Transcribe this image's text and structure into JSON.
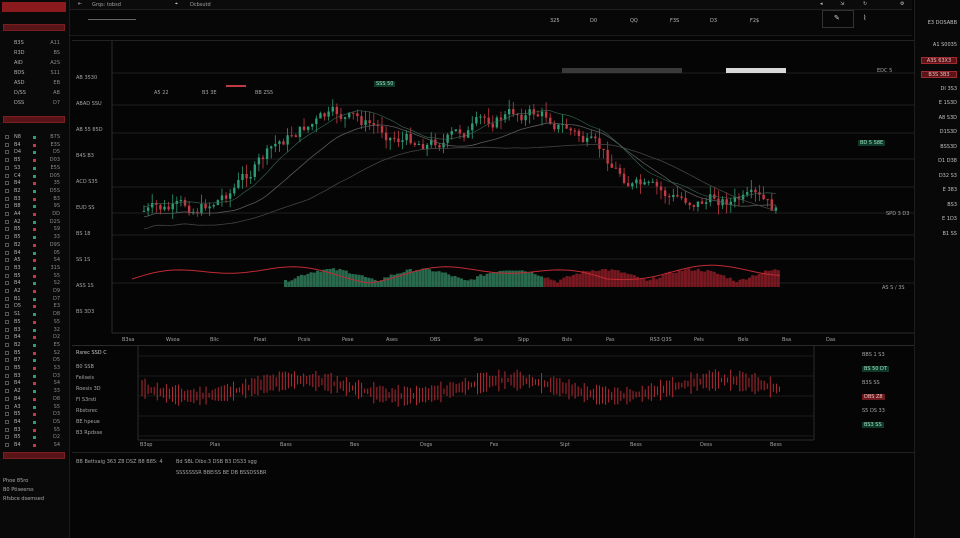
{
  "app": {
    "logo_text": "",
    "tab_label": "Grqs: tobsd",
    "tab2_label": "Dcbsutd"
  },
  "colors": {
    "up": "#2e9b74",
    "down": "#c23a44",
    "accent": "#8b1a1f",
    "grid": "#1e1e1e"
  },
  "header_prices": [
    "325",
    "D0",
    "QQ",
    "F3S",
    "D3",
    "F2$"
  ],
  "leftpanel": {
    "header_rows": [
      {
        "sym": "B3S",
        "val": "A11"
      },
      {
        "sym": "R3D",
        "val": "BS"
      },
      {
        "sym": "AID",
        "val": "A2S"
      },
      {
        "sym": "BDS",
        "val": "S11"
      },
      {
        "sym": "ASD",
        "val": "EB"
      },
      {
        "sym": "D/SS",
        "val": "AB"
      },
      {
        "sym": "DSS",
        "val": "D7"
      }
    ],
    "watchlist": [
      {
        "sym": "N8",
        "val": "B7S",
        "color": "#2e9b74"
      },
      {
        "sym": "B4",
        "val": "E3S",
        "color": "#c23a44"
      },
      {
        "sym": "D4",
        "val": "D5",
        "color": "#2e9b74"
      },
      {
        "sym": "B5",
        "val": "D03",
        "color": "#c23a44"
      },
      {
        "sym": "S3",
        "val": "E5S",
        "color": "#2e9b74"
      },
      {
        "sym": "C4",
        "val": "D05",
        "color": "#2e9b74"
      },
      {
        "sym": "B4",
        "val": "35",
        "color": "#c23a44"
      },
      {
        "sym": "B2",
        "val": "D5S",
        "color": "#2e9b74"
      },
      {
        "sym": "B3",
        "val": "B3",
        "color": "#c23a44"
      },
      {
        "sym": "B8",
        "val": "9S",
        "color": "#2e9b74"
      },
      {
        "sym": "A4",
        "val": "DD",
        "color": "#c23a44"
      },
      {
        "sym": "A2",
        "val": "D2S",
        "color": "#2e9b74"
      },
      {
        "sym": "B5",
        "val": "S9",
        "color": "#c23a44"
      },
      {
        "sym": "B5",
        "val": "33",
        "color": "#2e9b74"
      },
      {
        "sym": "B2",
        "val": "D9S",
        "color": "#c23a44"
      },
      {
        "sym": "B4",
        "val": "05",
        "color": "#2e9b74"
      },
      {
        "sym": "A5",
        "val": "S4",
        "color": "#c23a44"
      },
      {
        "sym": "B3",
        "val": "31S",
        "color": "#2e9b74"
      },
      {
        "sym": "B5",
        "val": "S5",
        "color": "#c23a44"
      },
      {
        "sym": "B4",
        "val": "S2",
        "color": "#2e9b74"
      },
      {
        "sym": "A2",
        "val": "D9",
        "color": "#c23a44"
      },
      {
        "sym": "B1",
        "val": "D7",
        "color": "#2e9b74"
      },
      {
        "sym": "D5",
        "val": "E3",
        "color": "#c23a44"
      },
      {
        "sym": "S1",
        "val": "D8",
        "color": "#2e9b74"
      },
      {
        "sym": "B5",
        "val": "S5",
        "color": "#c23a44"
      },
      {
        "sym": "B3",
        "val": "32",
        "color": "#2e9b74"
      },
      {
        "sym": "B4",
        "val": "D2",
        "color": "#c23a44"
      },
      {
        "sym": "B2",
        "val": "E5",
        "color": "#2e9b74"
      },
      {
        "sym": "B5",
        "val": "S2",
        "color": "#c23a44"
      },
      {
        "sym": "B7",
        "val": "D5",
        "color": "#2e9b74"
      },
      {
        "sym": "B5",
        "val": "S3",
        "color": "#c23a44"
      },
      {
        "sym": "B3",
        "val": "D3",
        "color": "#2e9b74"
      },
      {
        "sym": "B4",
        "val": "S4",
        "color": "#c23a44"
      },
      {
        "sym": "A2",
        "val": "33",
        "color": "#2e9b74"
      },
      {
        "sym": "B4",
        "val": "D8",
        "color": "#c23a44"
      },
      {
        "sym": "A3",
        "val": "S5",
        "color": "#2e9b74"
      },
      {
        "sym": "B5",
        "val": "D3",
        "color": "#c23a44"
      },
      {
        "sym": "B4",
        "val": "DS",
        "color": "#2e9b74"
      },
      {
        "sym": "B3",
        "val": "S5",
        "color": "#c23a44"
      },
      {
        "sym": "B5",
        "val": "D2",
        "color": "#2e9b74"
      },
      {
        "sym": "B4",
        "val": "S4",
        "color": "#c23a44"
      }
    ],
    "footer": [
      "Phoe 85ro",
      "B0 Ptiseerss",
      "Rfsbce dsemsed"
    ]
  },
  "rightpanel": {
    "header": "E3 DOSABB",
    "rows": [
      {
        "label": "A1 S0035",
        "style": "plain"
      },
      {
        "label": "A3S 63X3",
        "style": "red"
      },
      {
        "label": "B3S 3B3",
        "style": "red"
      },
      {
        "label": "DI 3S3",
        "style": "plain"
      },
      {
        "label": "E 1S3D",
        "style": "plain"
      },
      {
        "label": "A8 S3D",
        "style": "plain"
      },
      {
        "label": "D1S3D",
        "style": "plain"
      },
      {
        "label": "BSS3D",
        "style": "plain"
      },
      {
        "label": "D1 D38",
        "style": "plain"
      },
      {
        "label": "D32 S3",
        "style": "plain"
      },
      {
        "label": "E 383",
        "style": "plain"
      },
      {
        "label": "BS3",
        "style": "plain"
      },
      {
        "label": "E 1D3",
        "style": "plain"
      },
      {
        "label": "B1 SS",
        "style": "plain"
      }
    ]
  },
  "chart": {
    "price_axis": [
      "AB 3530",
      "ABAD SSU",
      "AB 55 85D",
      "B4S B3",
      "ACD S35",
      "EUD SS",
      "BS 18",
      "SS 1S",
      "ASS 1S",
      "BS 3D3"
    ],
    "time_axis": [
      "B3sa",
      "Wsoa",
      "Bilc",
      "Fleat",
      "Pcsis",
      "Pese",
      "Ases",
      "DBS",
      "Ses",
      "Sipp",
      "Bsls",
      "Pas",
      "RS3 Q3S",
      "Pels",
      "Bels",
      "Bsa",
      "Das"
    ],
    "legend": {
      "a": "A5 22",
      "b": "B3 3E",
      "c": "BB ZS5"
    },
    "top_right_label": "EDC 5",
    "green_tag": "BD 5 S8E",
    "right_tag": "SPD 3 D3",
    "bottom_right": "AS S / 3S",
    "price_indicator": "SSS 50"
  },
  "lower": {
    "title": "Rsrec SSD C",
    "rows": [
      "B0 SSB",
      "Feilseis",
      "Roesis 3D",
      "Fl S3rsti",
      "Rbstsrec",
      "BE hpeue",
      "B3 Rpdsse"
    ],
    "right_rows": [
      {
        "label": "BBS 1 S3",
        "style": "plain"
      },
      {
        "label": "BS 50 DT",
        "style": "green"
      },
      {
        "label": "B3S SS",
        "style": "plain"
      },
      {
        "label": "DBS Z8",
        "style": "red"
      },
      {
        "label": "S5 DS 33",
        "style": "plain"
      },
      {
        "label": "BS3 SS",
        "style": "green"
      }
    ],
    "time_axis": [
      "B3sp",
      "Plas",
      "Bass",
      "Bes",
      "Dsgs",
      "Fes",
      "Sipt",
      "Bess",
      "Dess",
      "Bess"
    ],
    "status": "BB Bettsaig 363 Z8 DSZ B8 B85: 4",
    "status2": "Bd SBL Dibs:3 DSB B3 DS33 sgg",
    "status3": "SSSSSSSR BBEiSS BE DB BSSDSSBR"
  }
}
